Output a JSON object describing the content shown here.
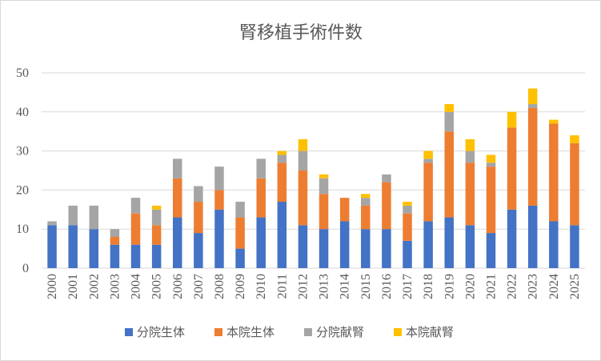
{
  "chart_data": {
    "type": "bar",
    "stacked": true,
    "title": "腎移植手術件数",
    "xlabel": "",
    "ylabel": "",
    "ylim": [
      0,
      50
    ],
    "yticks": [
      0,
      10,
      20,
      30,
      40,
      50
    ],
    "grid": true,
    "legend": "bottom",
    "categories": [
      "2000",
      "2001",
      "2002",
      "2003",
      "2004",
      "2005",
      "2006",
      "2007",
      "2008",
      "2009",
      "2010",
      "2011",
      "2012",
      "2013",
      "2014",
      "2015",
      "2016",
      "2017",
      "2018",
      "2019",
      "2020",
      "2021",
      "2022",
      "2023",
      "2024",
      "2025"
    ],
    "series": [
      {
        "name": "分院生体",
        "color": "#4472c4",
        "values": [
          11,
          11,
          10,
          6,
          6,
          6,
          13,
          9,
          15,
          5,
          13,
          17,
          11,
          10,
          12,
          10,
          10,
          7,
          12,
          13,
          11,
          9,
          15,
          16,
          12,
          11
        ]
      },
      {
        "name": "本院生体",
        "color": "#ed7d31",
        "values": [
          0,
          0,
          0,
          2,
          8,
          5,
          10,
          8,
          5,
          8,
          10,
          10,
          14,
          9,
          6,
          6,
          12,
          7,
          15,
          22,
          16,
          17,
          21,
          25,
          25,
          21
        ]
      },
      {
        "name": "分院献腎",
        "color": "#a5a5a5",
        "values": [
          1,
          5,
          6,
          2,
          4,
          4,
          5,
          4,
          6,
          4,
          5,
          2,
          5,
          4,
          0,
          2,
          2,
          2,
          1,
          5,
          3,
          1,
          0,
          1,
          0,
          0
        ]
      },
      {
        "name": "本院献腎",
        "color": "#ffc000",
        "values": [
          0,
          0,
          0,
          0,
          0,
          1,
          0,
          0,
          0,
          0,
          0,
          1,
          3,
          1,
          0,
          1,
          0,
          1,
          2,
          2,
          3,
          2,
          4,
          4,
          1,
          2
        ]
      }
    ]
  }
}
